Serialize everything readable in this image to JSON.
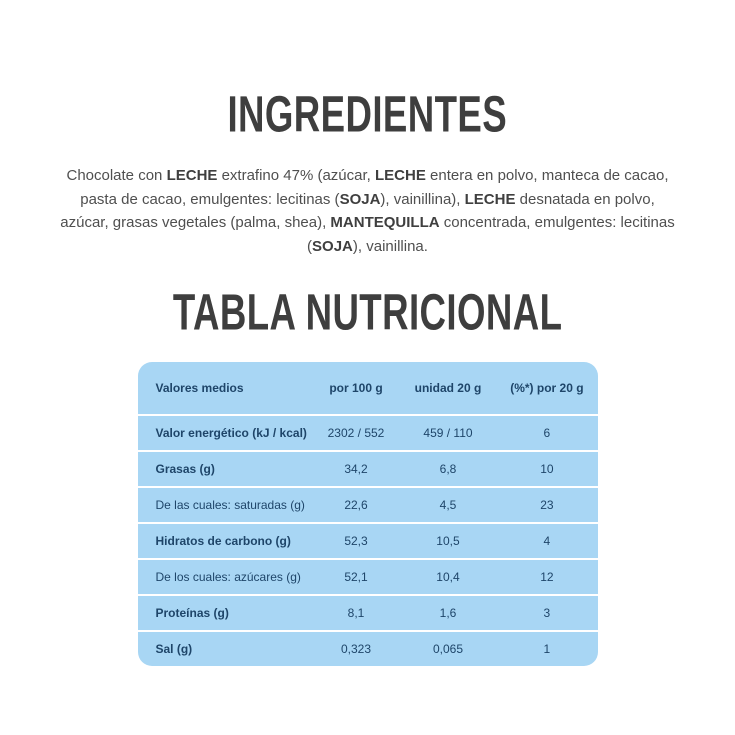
{
  "theme": {
    "heading_color": "#3e3e3e",
    "body_text": "#4f4f4f",
    "row_bg": "#a8d6f4",
    "table_text": "#1e4569"
  },
  "ingredients": {
    "title": "INGREDIENTES",
    "paragraph_parts": [
      {
        "text": "Chocolate con ",
        "bold": false
      },
      {
        "text": "LECHE",
        "bold": true
      },
      {
        "text": " extrafino 47% (azúcar, ",
        "bold": false
      },
      {
        "text": "LECHE",
        "bold": true
      },
      {
        "text": " entera en polvo, manteca de cacao, pasta de cacao, emulgentes: lecitinas (",
        "bold": false
      },
      {
        "text": "SOJA",
        "bold": true
      },
      {
        "text": "), vainillina), ",
        "bold": false
      },
      {
        "text": "LECHE",
        "bold": true
      },
      {
        "text": " desnatada en polvo, azúcar, grasas vegetales (palma, shea), ",
        "bold": false
      },
      {
        "text": "MANTEQUILLA",
        "bold": true
      },
      {
        "text": " concentrada, emulgentes: lecitinas (",
        "bold": false
      },
      {
        "text": "SOJA",
        "bold": true
      },
      {
        "text": "), vainillina.",
        "bold": false
      }
    ]
  },
  "nutrition": {
    "title": "TABLA NUTRICIONAL",
    "table": {
      "headers": [
        "Valores medios",
        "por 100 g",
        "unidad 20 g",
        "(%*) por 20 g"
      ],
      "rows": [
        {
          "label": "Valor energético (kJ / kcal)",
          "bold": true,
          "per100": "2302 / 552",
          "unit20": "459 / 110",
          "pct20": "6"
        },
        {
          "label": "Grasas (g)",
          "bold": true,
          "per100": "34,2",
          "unit20": "6,8",
          "pct20": "10"
        },
        {
          "label": "De las cuales: saturadas (g)",
          "bold": false,
          "per100": "22,6",
          "unit20": "4,5",
          "pct20": "23"
        },
        {
          "label": "Hidratos de carbono (g)",
          "bold": true,
          "per100": "52,3",
          "unit20": "10,5",
          "pct20": "4"
        },
        {
          "label": "De los cuales: azúcares (g)",
          "bold": false,
          "per100": "52,1",
          "unit20": "10,4",
          "pct20": "12"
        },
        {
          "label": "Proteínas (g)",
          "bold": true,
          "per100": "8,1",
          "unit20": "1,6",
          "pct20": "3"
        },
        {
          "label": "Sal (g)",
          "bold": true,
          "per100": "0,323",
          "unit20": "0,065",
          "pct20": "1"
        }
      ]
    }
  }
}
